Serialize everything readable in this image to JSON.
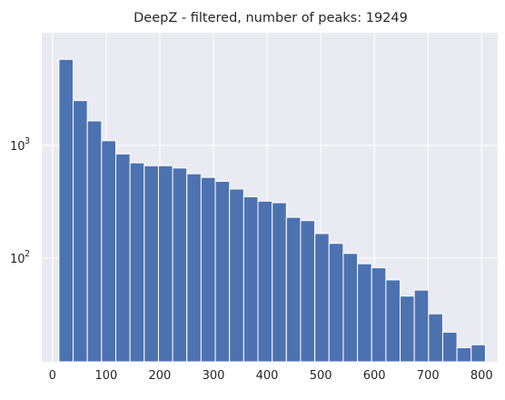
{
  "chart_data": {
    "type": "bar",
    "title": "DeepZ - filtered, number of peaks: 19249",
    "xlabel": "",
    "ylabel": "",
    "y_scale": "log",
    "xlim": [
      -20,
      830
    ],
    "ylim": [
      12,
      10000
    ],
    "x_ticks": [
      0,
      100,
      200,
      300,
      400,
      500,
      600,
      700,
      800
    ],
    "x_tick_labels": [
      "0",
      "100",
      "200",
      "300",
      "400",
      "500",
      "600",
      "700",
      "800"
    ],
    "y_ticks": [
      {
        "value": 1000,
        "base": "10",
        "exp": "3"
      },
      {
        "value": 100,
        "base": "10",
        "exp": "2"
      }
    ],
    "grid": true,
    "legend": "none",
    "bin_width": 26.5,
    "bins_left": [
      12,
      38.5,
      65,
      91.5,
      118,
      144.5,
      171,
      197.5,
      224,
      250.5,
      277,
      303.5,
      330,
      356.5,
      383,
      409.5,
      436,
      462.5,
      489,
      515.5,
      542,
      568.5,
      595,
      621.5,
      648,
      674.5,
      701,
      727.5,
      754,
      780.5
    ],
    "values": [
      5800,
      2500,
      1650,
      1100,
      840,
      700,
      660,
      660,
      630,
      560,
      520,
      480,
      410,
      350,
      320,
      310,
      230,
      215,
      165,
      135,
      110,
      89,
      82,
      64,
      46,
      52,
      32,
      22,
      16,
      17
    ],
    "bar_color": "#4c72b0",
    "background_color": "#eaeaf2"
  }
}
